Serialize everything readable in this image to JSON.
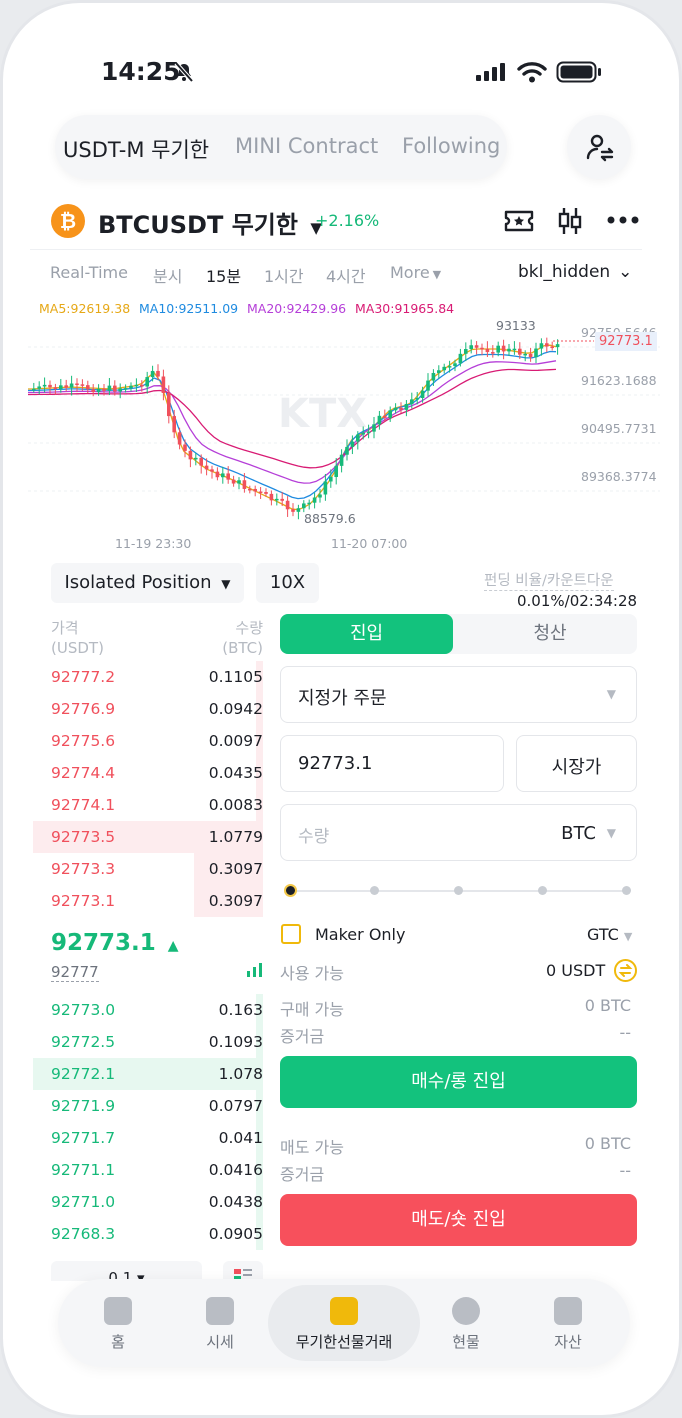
{
  "status": {
    "time": "14:25"
  },
  "tabs": [
    {
      "label": "USDT-M 무기한"
    },
    {
      "label": "MINI Contract"
    },
    {
      "label": "Following"
    }
  ],
  "ticker": {
    "coin_letter": "₿",
    "symbol": "BTCUSDT 무기한",
    "change": "+2.16%"
  },
  "timeframes": [
    "Real-Time",
    "분시",
    "15분",
    "1시간",
    "4시간",
    "More"
  ],
  "chart_style": "bkl_hidden",
  "ma": {
    "ma5": "MA5:92619.38",
    "ma10": "MA10:92511.09",
    "ma20": "MA20:92429.96",
    "ma30": "MA30:91965.84",
    "colors": {
      "ma5": "#e6a817",
      "ma10": "#1f8be0",
      "ma20": "#b53fd8",
      "ma30": "#d81b74"
    }
  },
  "chart_data": {
    "type": "candlestick",
    "price_axis": [
      "92750.5646",
      "91623.1688",
      "90495.7731",
      "89368.3774"
    ],
    "x_labels": [
      "11-19 23:30",
      "11-20 07:00"
    ],
    "annotations": {
      "high": "93133",
      "low": "88579.6",
      "last": "92773.1"
    },
    "watermark": "KTX"
  },
  "controls": {
    "position_mode": "Isolated Position",
    "leverage": "10X",
    "funding_label": "펀딩 비율/카운트다운",
    "funding_value": "0.01%/02:34:28"
  },
  "orderbook": {
    "header_price": "가격\n(USDT)",
    "header_qty": "수량\n(BTC)",
    "asks": [
      {
        "price": "92777.2",
        "qty": "0.1105",
        "depth": 0.02
      },
      {
        "price": "92776.9",
        "qty": "0.0942",
        "depth": 0.02
      },
      {
        "price": "92775.6",
        "qty": "0.0097",
        "depth": 0.01
      },
      {
        "price": "92774.4",
        "qty": "0.0435",
        "depth": 0.01
      },
      {
        "price": "92774.1",
        "qty": "0.0083",
        "depth": 0.01
      },
      {
        "price": "92773.5",
        "qty": "1.0779",
        "depth": 1.0
      },
      {
        "price": "92773.3",
        "qty": "0.3097",
        "depth": 0.3
      },
      {
        "price": "92773.1",
        "qty": "0.3097",
        "depth": 0.3
      }
    ],
    "last_price": "92773.1",
    "mark_price": "92777",
    "bids": [
      {
        "price": "92773.0",
        "qty": "0.163",
        "depth": 0.01
      },
      {
        "price": "92772.5",
        "qty": "0.1093",
        "depth": 0.01
      },
      {
        "price": "92772.1",
        "qty": "1.078",
        "depth": 1.0
      },
      {
        "price": "92771.9",
        "qty": "0.0797",
        "depth": 0.01
      },
      {
        "price": "92771.7",
        "qty": "0.041",
        "depth": 0.01
      },
      {
        "price": "92771.1",
        "qty": "0.0416",
        "depth": 0.01
      },
      {
        "price": "92771.0",
        "qty": "0.0438",
        "depth": 0.01
      },
      {
        "price": "92768.3",
        "qty": "0.0905",
        "depth": 0.01
      }
    ],
    "precision": "0.1"
  },
  "order_form": {
    "tab_open": "진입",
    "tab_close": "청산",
    "order_type": "지정가 주문",
    "price_value": "92773.1",
    "market_label": "시장가",
    "qty_placeholder": "수량",
    "qty_unit": "BTC",
    "maker_only": "Maker Only",
    "tif": "GTC",
    "available_label": "사용 가능",
    "available_value": "0 USDT",
    "buy_avail_label": "구매 가능",
    "buy_avail_value": "0 BTC",
    "margin_label": "증거금",
    "margin_value": "--",
    "buy_button": "매수/롱 진입",
    "sell_avail_label": "매도 가능",
    "sell_avail_value": "0 BTC",
    "sell_margin_label": "증거금",
    "sell_margin_value": "--",
    "sell_button": "매도/숏 진입"
  },
  "nav": [
    {
      "label": "홈"
    },
    {
      "label": "시세"
    },
    {
      "label": "무기한선물거래"
    },
    {
      "label": "현물"
    },
    {
      "label": "자산"
    }
  ]
}
